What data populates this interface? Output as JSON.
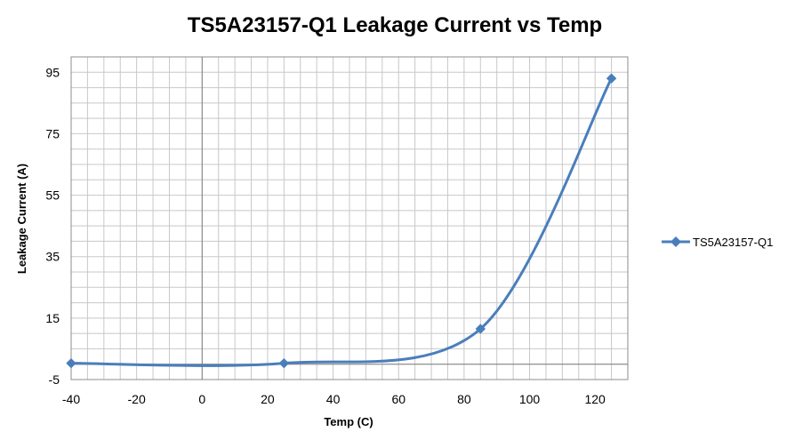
{
  "chart_data": {
    "type": "line",
    "title": "TS5A23157-Q1 Leakage Current vs Temp",
    "xlabel": "Temp (C)",
    "ylabel": "Leakage Current (A)",
    "xlim": [
      -40,
      130
    ],
    "ylim": [
      -5,
      100
    ],
    "x_ticks": [
      -40,
      -20,
      0,
      20,
      40,
      60,
      80,
      100,
      120
    ],
    "y_ticks": [
      -5,
      15,
      35,
      55,
      75,
      95
    ],
    "grid": true,
    "smooth": true,
    "legend_position": "right",
    "series": [
      {
        "name": "TS5A23157-Q1",
        "color": "#4a7ebb",
        "marker": "diamond",
        "x": [
          -40,
          25,
          85,
          125
        ],
        "y": [
          0.3,
          0.3,
          11.5,
          93
        ]
      }
    ]
  }
}
